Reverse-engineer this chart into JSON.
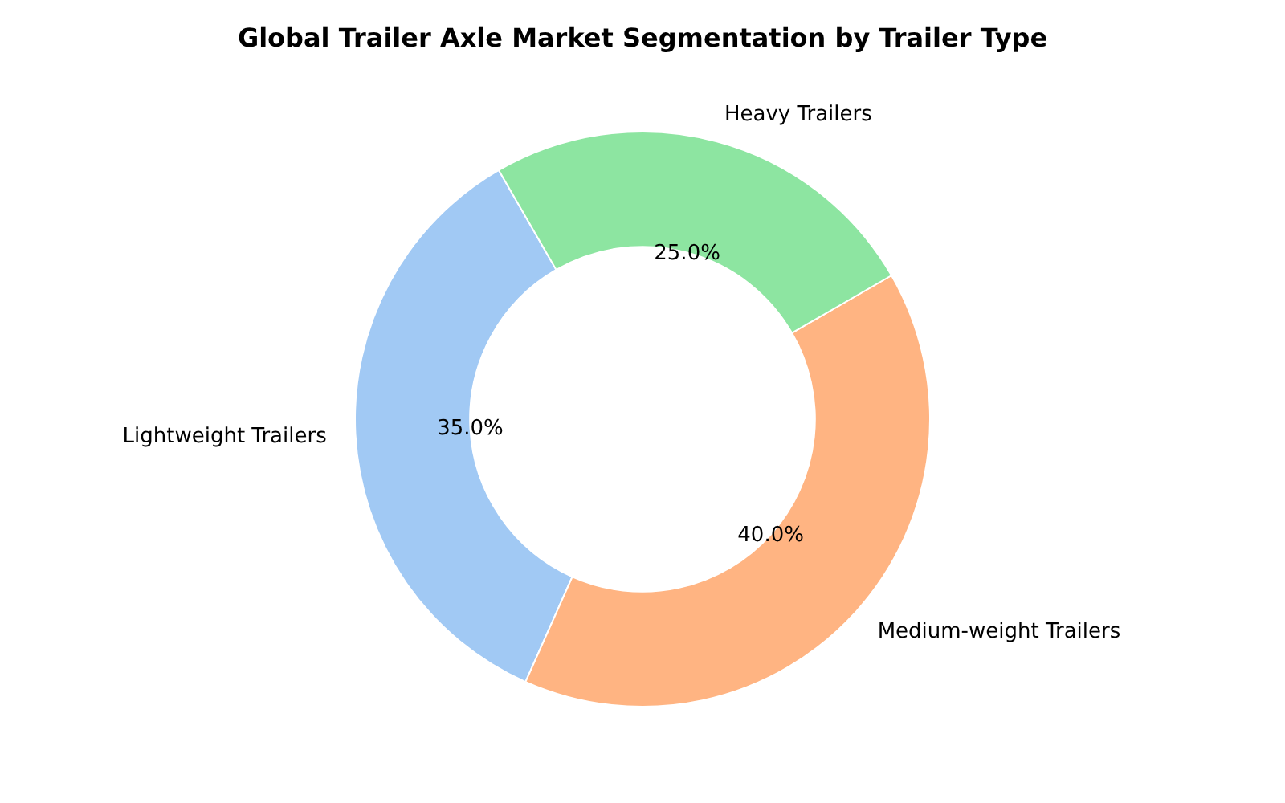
{
  "chart_data": {
    "type": "donut",
    "title": "Global Trailer Axle Market Segmentation by Trailer Type",
    "categories": [
      "Lightweight Trailers",
      "Medium-weight Trailers",
      "Heavy Trailers"
    ],
    "values": [
      35,
      40,
      25
    ],
    "colors": [
      "#a1c9f4",
      "#ffb482",
      "#8de5a1"
    ],
    "value_labels": [
      "35.0%",
      "40.0%",
      "25.0%"
    ]
  }
}
